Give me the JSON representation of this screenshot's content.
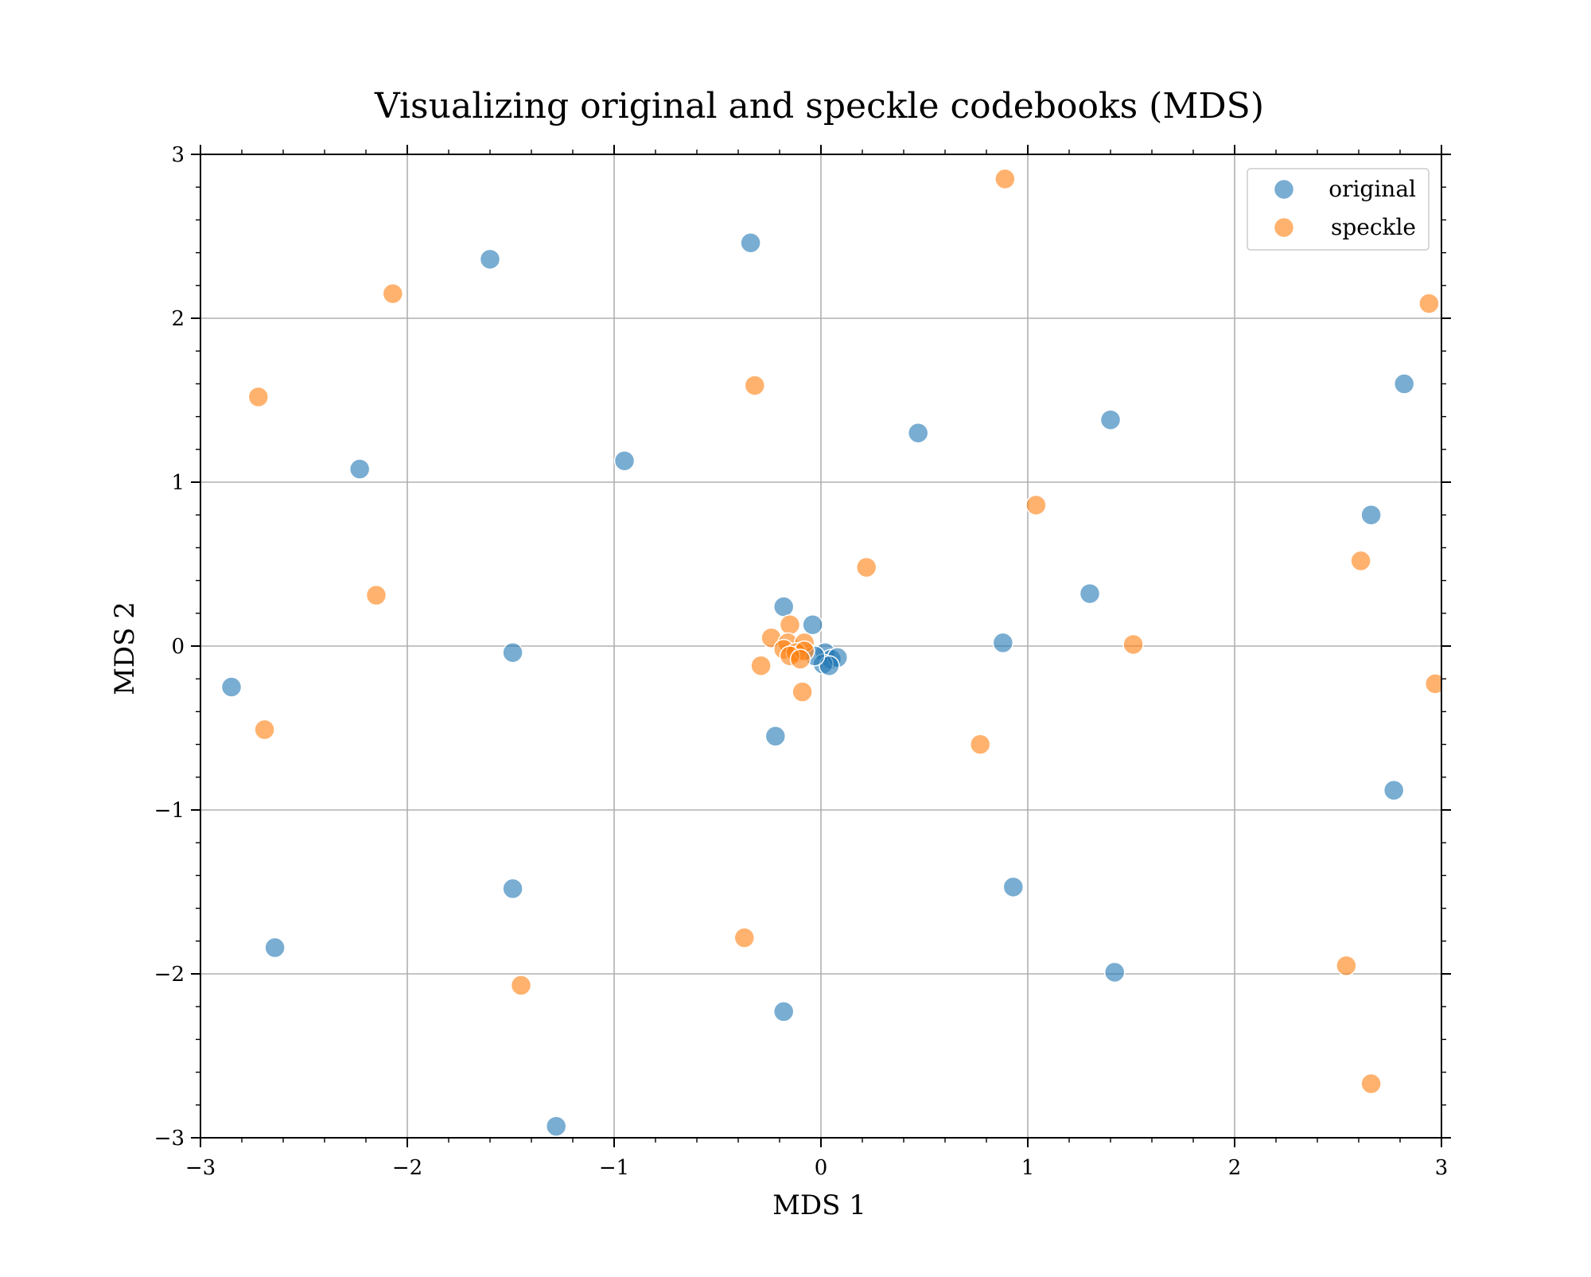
{
  "chart_data": {
    "type": "scatter",
    "title": "Visualizing original and speckle codebooks (MDS)",
    "xlabel": "MDS 1",
    "ylabel": "MDS 2",
    "xlim": [
      -3,
      3
    ],
    "ylim": [
      -3,
      3
    ],
    "xticks": [
      -3,
      -2,
      -1,
      0,
      1,
      2,
      3
    ],
    "yticks": [
      -3,
      -2,
      -1,
      0,
      1,
      2,
      3
    ],
    "xtick_labels": [
      "−3",
      "−2",
      "−1",
      "0",
      "1",
      "2",
      "3"
    ],
    "ytick_labels": [
      "−3",
      "−2",
      "−1",
      "0",
      "1",
      "2",
      "3"
    ],
    "grid": true,
    "legend_position": "top-right",
    "series": [
      {
        "name": "original",
        "color": "#1f77b4",
        "points": [
          [
            -1.6,
            2.36
          ],
          [
            -0.34,
            2.46
          ],
          [
            -2.23,
            1.08
          ],
          [
            -0.95,
            1.13
          ],
          [
            0.47,
            1.3
          ],
          [
            1.4,
            1.38
          ],
          [
            2.82,
            1.6
          ],
          [
            2.66,
            0.8
          ],
          [
            1.3,
            0.32
          ],
          [
            0.88,
            0.02
          ],
          [
            -0.18,
            0.24
          ],
          [
            -0.04,
            0.13
          ],
          [
            0.02,
            -0.04
          ],
          [
            0.05,
            -0.08
          ],
          [
            0.08,
            -0.07
          ],
          [
            0.01,
            -0.11
          ],
          [
            0.04,
            -0.12
          ],
          [
            -0.03,
            -0.06
          ],
          [
            -1.49,
            -0.04
          ],
          [
            -2.85,
            -0.25
          ],
          [
            -0.22,
            -0.55
          ],
          [
            2.77,
            -0.88
          ],
          [
            0.93,
            -1.47
          ],
          [
            -1.49,
            -1.48
          ],
          [
            -2.64,
            -1.84
          ],
          [
            1.42,
            -1.99
          ],
          [
            -0.18,
            -2.23
          ],
          [
            -1.28,
            -2.93
          ]
        ]
      },
      {
        "name": "speckle",
        "color": "#ff7f0e",
        "points": [
          [
            0.89,
            2.85
          ],
          [
            -2.07,
            2.15
          ],
          [
            2.94,
            2.09
          ],
          [
            -2.72,
            1.52
          ],
          [
            -0.32,
            1.59
          ],
          [
            1.04,
            0.86
          ],
          [
            0.22,
            0.48
          ],
          [
            2.61,
            0.52
          ],
          [
            -2.15,
            0.31
          ],
          [
            -0.15,
            0.13
          ],
          [
            -0.24,
            0.05
          ],
          [
            -0.16,
            0.02
          ],
          [
            -0.08,
            0.02
          ],
          [
            -0.18,
            -0.02
          ],
          [
            -0.12,
            -0.04
          ],
          [
            -0.08,
            -0.03
          ],
          [
            -0.15,
            -0.06
          ],
          [
            -0.1,
            -0.08
          ],
          [
            1.51,
            0.01
          ],
          [
            -0.29,
            -0.12
          ],
          [
            -0.09,
            -0.28
          ],
          [
            2.97,
            -0.23
          ],
          [
            -2.69,
            -0.51
          ],
          [
            0.77,
            -0.6
          ],
          [
            -0.37,
            -1.78
          ],
          [
            2.54,
            -1.95
          ],
          [
            -1.45,
            -2.07
          ],
          [
            2.66,
            -2.67
          ]
        ]
      }
    ]
  }
}
